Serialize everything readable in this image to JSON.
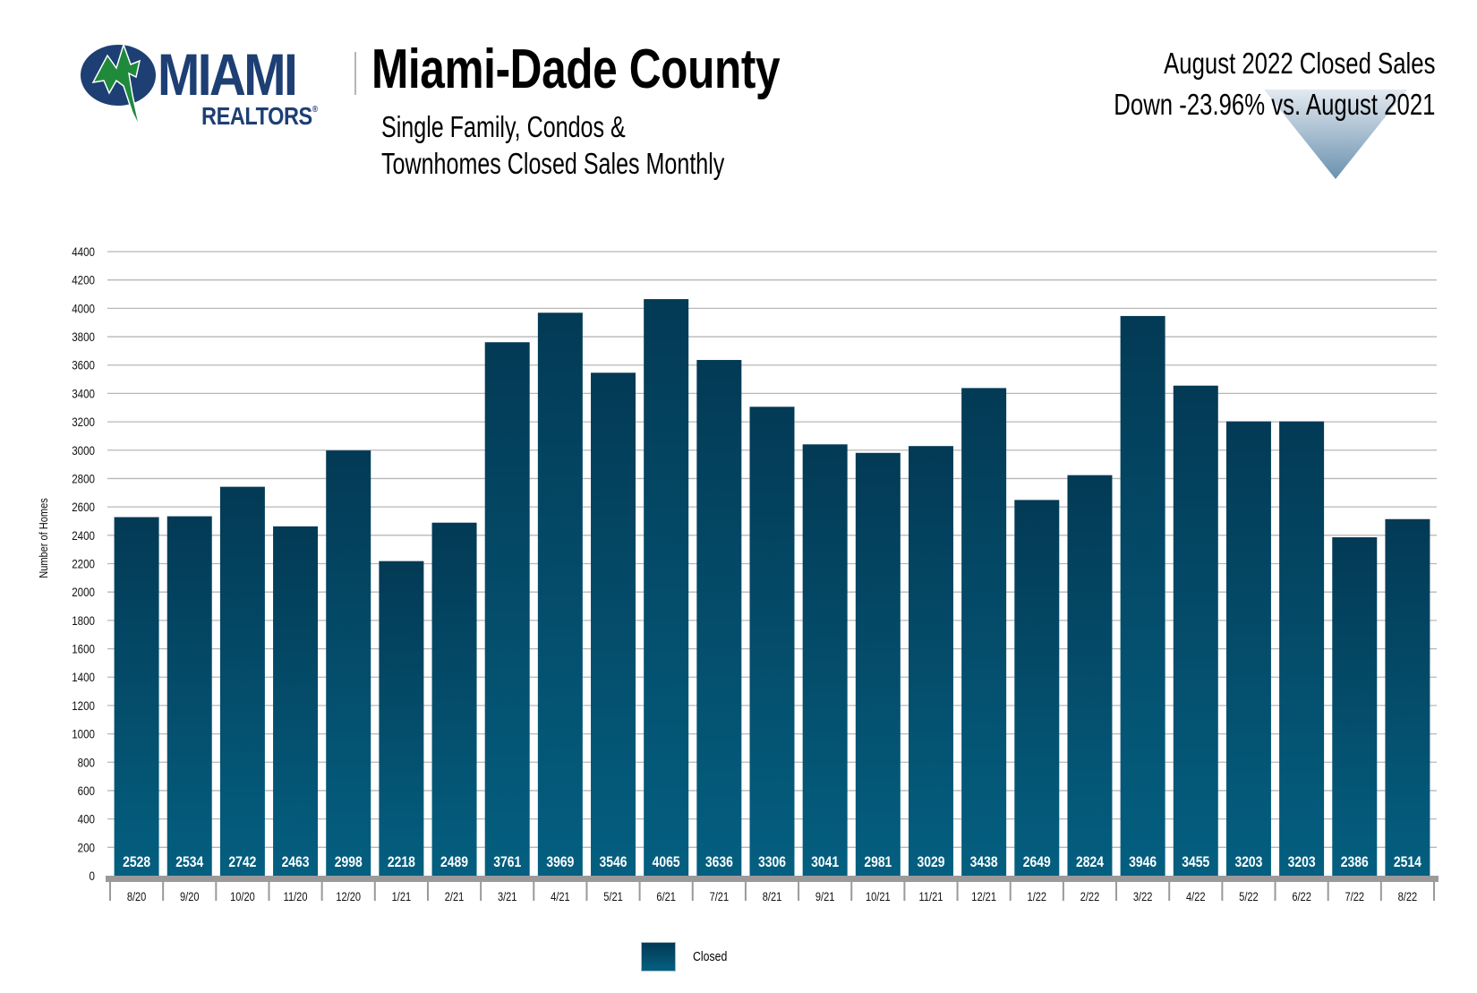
{
  "header": {
    "logo": {
      "word": "MIAMI",
      "sub": "REALTORS",
      "reg_mark": "®",
      "icon": "miami-realtors-logo-icon"
    },
    "title": "Miami-Dade County",
    "subtitle_line1": "Single Family, Condos &",
    "subtitle_line2": "Townhomes Closed Sales Monthly",
    "headline_line1": "August 2022 Closed Sales",
    "headline_line2": "Down -23.96% vs. August 2021",
    "trend_icon": "down-arrow-icon"
  },
  "colors": {
    "bar_top": "#033a55",
    "bar_bottom": "#045f80",
    "grid": "#b8b8b8",
    "baseline": "#9a9a9a",
    "logo_blue": "#1d3f73",
    "logo_green": "#1f8a3c",
    "arrow_top": "#dfe6ee",
    "arrow_bottom": "#6f95b2"
  },
  "chart_data": {
    "type": "bar",
    "title": "Miami-Dade County Single Family, Condos & Townhomes Closed Sales Monthly",
    "xlabel": "",
    "ylabel": "Number of Homes",
    "ylim": [
      0,
      4400
    ],
    "ytick_step": 200,
    "yticks": [
      "0",
      "200",
      "400",
      "600",
      "800",
      "1000",
      "1200",
      "1400",
      "1600",
      "1800",
      "2000",
      "2200",
      "2400",
      "2600",
      "2800",
      "3000",
      "3200",
      "3400",
      "3600",
      "3800",
      "4000",
      "4200",
      "4400"
    ],
    "grid": true,
    "legend_position": "bottom-center",
    "categories": [
      "8/20",
      "9/20",
      "10/20",
      "11/20",
      "12/20",
      "1/21",
      "2/21",
      "3/21",
      "4/21",
      "5/21",
      "6/21",
      "7/21",
      "8/21",
      "9/21",
      "10/21",
      "11/21",
      "12/21",
      "1/22",
      "2/22",
      "3/22",
      "4/22",
      "5/22",
      "6/22",
      "7/22",
      "8/22"
    ],
    "series": [
      {
        "name": "Closed",
        "values": [
          2528,
          2534,
          2742,
          2463,
          2998,
          2218,
          2489,
          3761,
          3969,
          3546,
          4065,
          3636,
          3306,
          3041,
          2981,
          3029,
          3438,
          2649,
          2824,
          3946,
          3455,
          3203,
          3203,
          2386,
          2514
        ]
      }
    ]
  },
  "legend": {
    "items": [
      {
        "label": "Closed"
      }
    ]
  }
}
